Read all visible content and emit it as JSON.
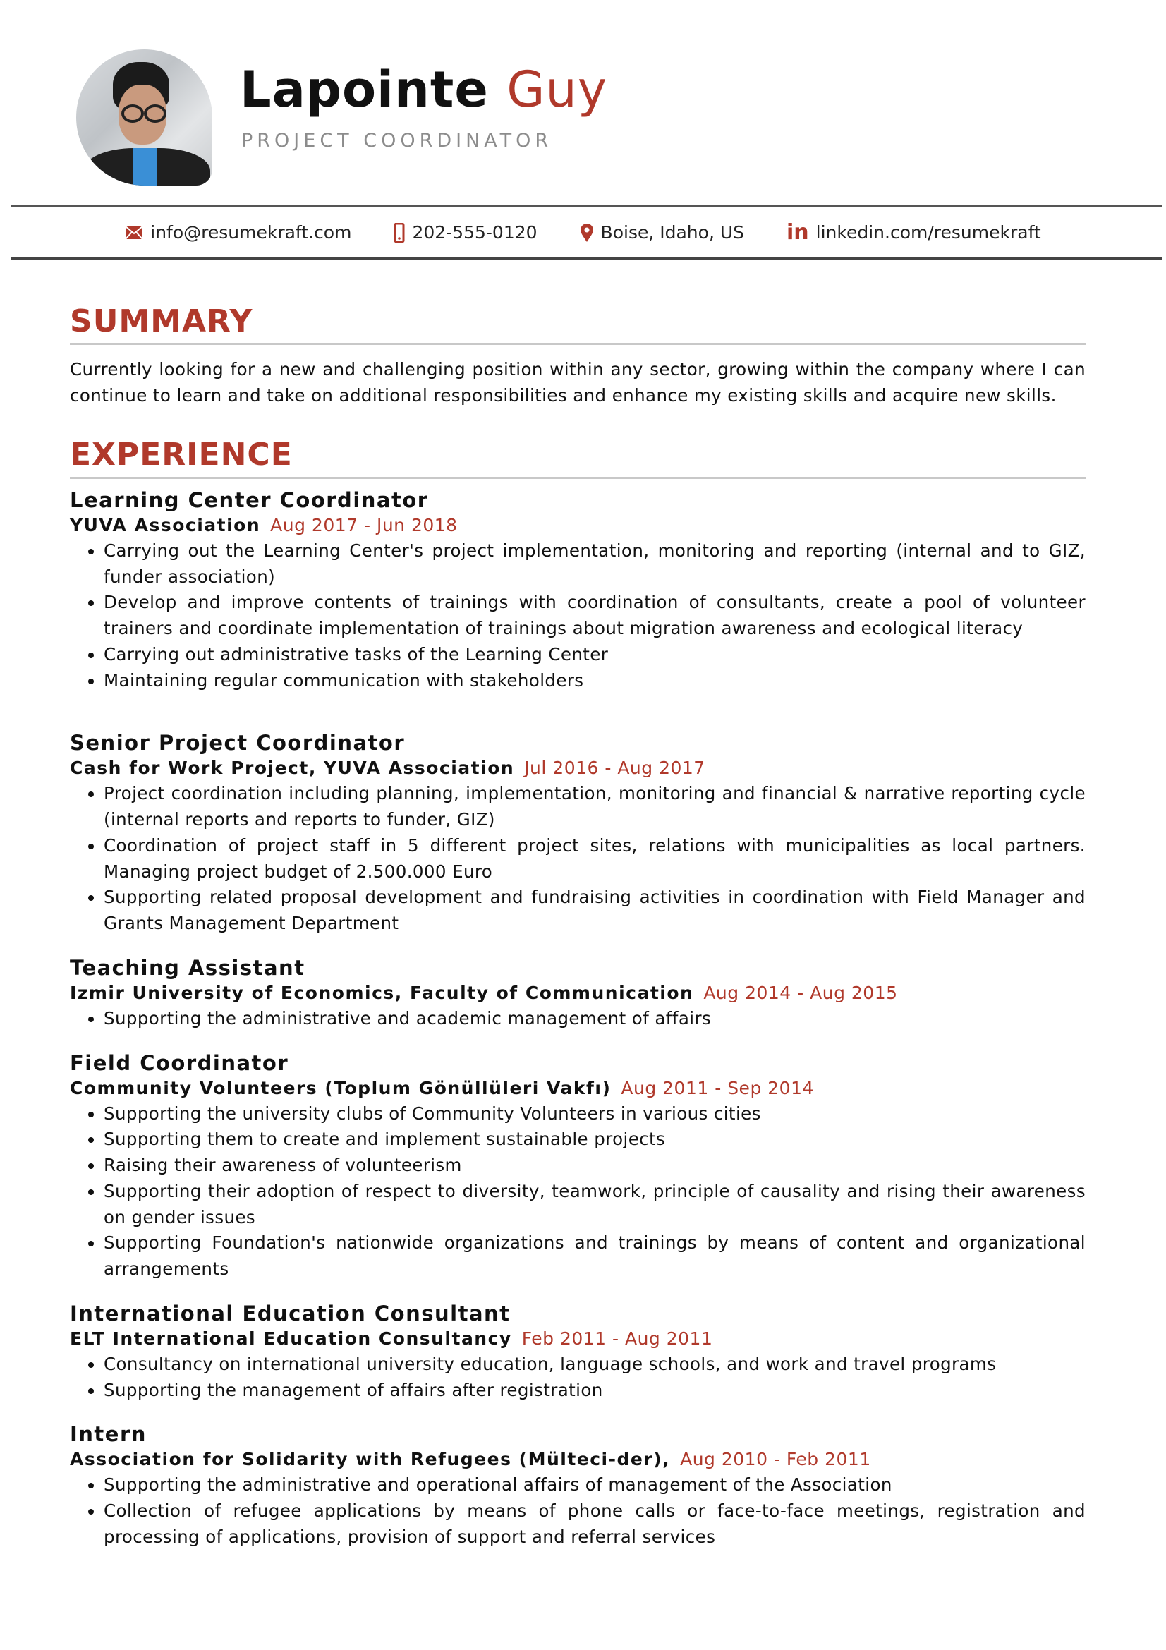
{
  "header": {
    "first_name": "Lapointe",
    "last_name": "Guy",
    "title": "PROJECT COORDINATOR",
    "accent_color": "#b0392b"
  },
  "contacts": [
    {
      "icon": "envelope-icon",
      "text": "info@resumekraft.com"
    },
    {
      "icon": "phone-icon",
      "text": "202-555-0120"
    },
    {
      "icon": "location-pin-icon",
      "text": "Boise, Idaho, US"
    },
    {
      "icon": "linkedin-icon",
      "text": "linkedin.com/resumekraft"
    }
  ],
  "summary": {
    "heading": "SUMMARY",
    "text": "Currently looking for a new and challenging position within any sector, growing within the company where I can continue to learn and take on additional responsibilities and enhance my existing skills and acquire new skills."
  },
  "experience": {
    "heading": "EXPERIENCE",
    "jobs": [
      {
        "title": "Learning Center Coordinator",
        "org": "YUVA Association",
        "dates": "Aug 2017 - Jun 2018",
        "bullets": [
          "Carrying out the Learning Center's  project implementation, monitoring and reporting (internal and to GIZ, funder association)",
          "Develop and improve contents of trainings with coordination of consultants, create a pool of volunteer trainers and coordinate implementation of  trainings about migration awareness and ecological literacy",
          "Carrying out administrative tasks of the Learning Center",
          "Maintaining regular communication with stakeholders"
        ]
      },
      {
        "title": "Senior Project Coordinator",
        "org": "Cash for Work Project, YUVA Association",
        "dates": "Jul 2016 - Aug 2017",
        "bullets": [
          "Project coordination including planning, implementation, monitoring and financial & narrative reporting cycle (internal reports and reports to funder, GIZ)",
          " Coordination of project staff in 5 different project sites, relations with municipalities as local partners. Managing project budget of 2.500.000 Euro",
          "Supporting related proposal development and fundraising activities in coordination with Field Manager and Grants Management Department"
        ]
      },
      {
        "title": "Teaching Assistant",
        "org": "Izmir University of Economics, Faculty of Communication",
        "dates": "Aug 2014 - Aug 2015",
        "bullets": [
          "Supporting the administrative and academic management of affairs"
        ]
      },
      {
        "title": "Field Coordinator",
        "org": "Community Volunteers (Toplum Gönüllüleri Vakfı)",
        "dates": "Aug 2011 - Sep 2014",
        "bullets": [
          "Supporting the university clubs of Community Volunteers in various cities",
          "Supporting them to create and implement sustainable projects",
          "Raising their awareness of volunteerism",
          "Supporting their adoption of respect to diversity, teamwork, principle of causality and rising their awareness on gender issues",
          "Supporting Foundation's nationwide organizations and trainings by means of content and organizational arrangements"
        ]
      },
      {
        "title": "International Education Consultant",
        "org": "ELT International Education Consultancy",
        "dates": "Feb 2011 - Aug 2011",
        "bullets": [
          "Consultancy on international university education, language schools, and work and travel programs",
          "Supporting the management of affairs after registration"
        ]
      },
      {
        "title": "Intern",
        "org": "Association for Solidarity with Refugees (Mülteci-der),",
        "dates": "Aug 2010 - Feb 2011",
        "bullets": [
          "Supporting the administrative and operational affairs of management of the Association",
          "Collection of refugee applications by means of phone calls or face-to-face meetings, registration and processing of applications, provision of support and referral services"
        ]
      }
    ]
  }
}
